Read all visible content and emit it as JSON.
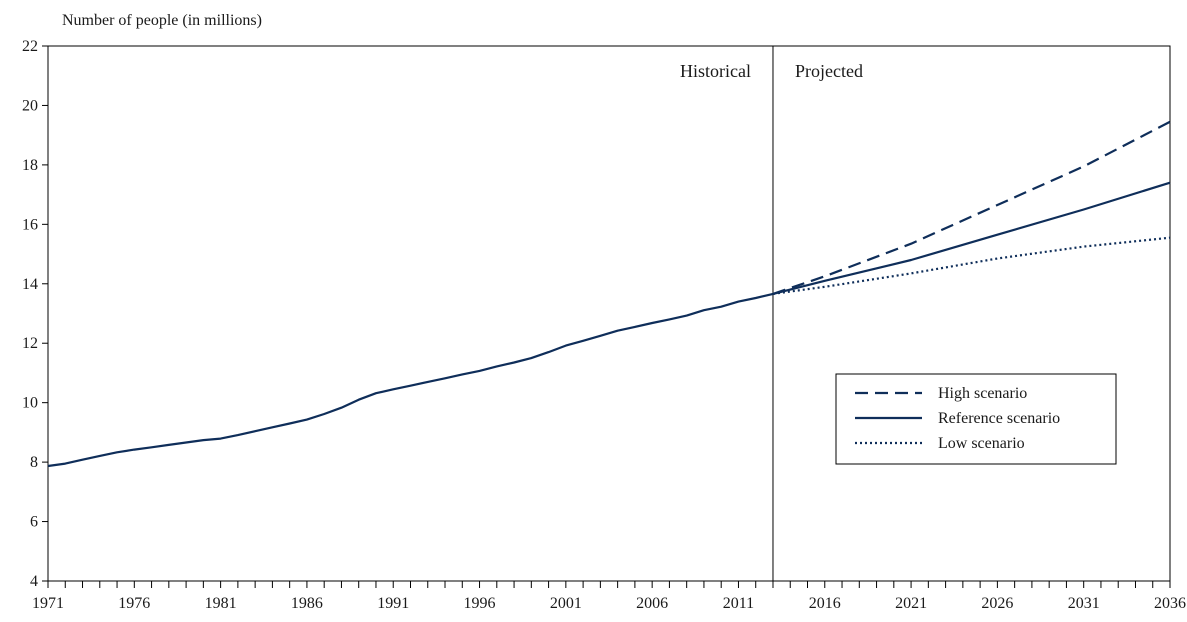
{
  "chart_data": {
    "type": "line",
    "title": "",
    "ylabel": "Number of people (in millions)",
    "xlabel": "",
    "xlim": [
      1971,
      2036
    ],
    "ylim": [
      4,
      22
    ],
    "yticks": [
      4,
      6,
      8,
      10,
      12,
      14,
      16,
      18,
      20,
      22
    ],
    "xticks": [
      1971,
      1976,
      1981,
      1986,
      1991,
      1996,
      2001,
      2006,
      2011,
      2016,
      2021,
      2026,
      2031,
      2036
    ],
    "grid": false,
    "divider_year": 2013,
    "region_labels": {
      "historical": "Historical",
      "projected": "Projected"
    },
    "legend_position": "right-middle",
    "color": "#0f2e5a",
    "historical": {
      "x": [
        1971,
        1972,
        1973,
        1974,
        1975,
        1976,
        1977,
        1978,
        1979,
        1980,
        1981,
        1982,
        1983,
        1984,
        1985,
        1986,
        1987,
        1988,
        1989,
        1990,
        1991,
        1992,
        1993,
        1994,
        1995,
        1996,
        1997,
        1998,
        1999,
        2000,
        2001,
        2002,
        2003,
        2004,
        2005,
        2006,
        2007,
        2008,
        2009,
        2010,
        2011,
        2012,
        2013
      ],
      "y": [
        7.87,
        7.95,
        8.08,
        8.21,
        8.33,
        8.42,
        8.5,
        8.58,
        8.66,
        8.74,
        8.79,
        8.91,
        9.04,
        9.17,
        9.3,
        9.43,
        9.62,
        9.83,
        10.1,
        10.32,
        10.45,
        10.57,
        10.7,
        10.82,
        10.95,
        11.07,
        11.22,
        11.35,
        11.5,
        11.7,
        11.92,
        12.08,
        12.25,
        12.42,
        12.55,
        12.68,
        12.8,
        12.93,
        13.11,
        13.23,
        13.4,
        13.52,
        13.66
      ]
    },
    "series": [
      {
        "name": "High scenario",
        "style": "dashed",
        "x": [
          2013,
          2016,
          2021,
          2026,
          2031,
          2036
        ],
        "y": [
          13.66,
          14.25,
          15.35,
          16.65,
          17.95,
          19.45
        ]
      },
      {
        "name": "Reference scenario",
        "style": "solid",
        "x": [
          2013,
          2016,
          2021,
          2026,
          2031,
          2036
        ],
        "y": [
          13.66,
          14.1,
          14.8,
          15.65,
          16.5,
          17.4
        ]
      },
      {
        "name": "Low scenario",
        "style": "dotted",
        "x": [
          2013,
          2016,
          2021,
          2026,
          2031,
          2036
        ],
        "y": [
          13.66,
          13.9,
          14.35,
          14.85,
          15.25,
          15.55
        ]
      }
    ]
  }
}
